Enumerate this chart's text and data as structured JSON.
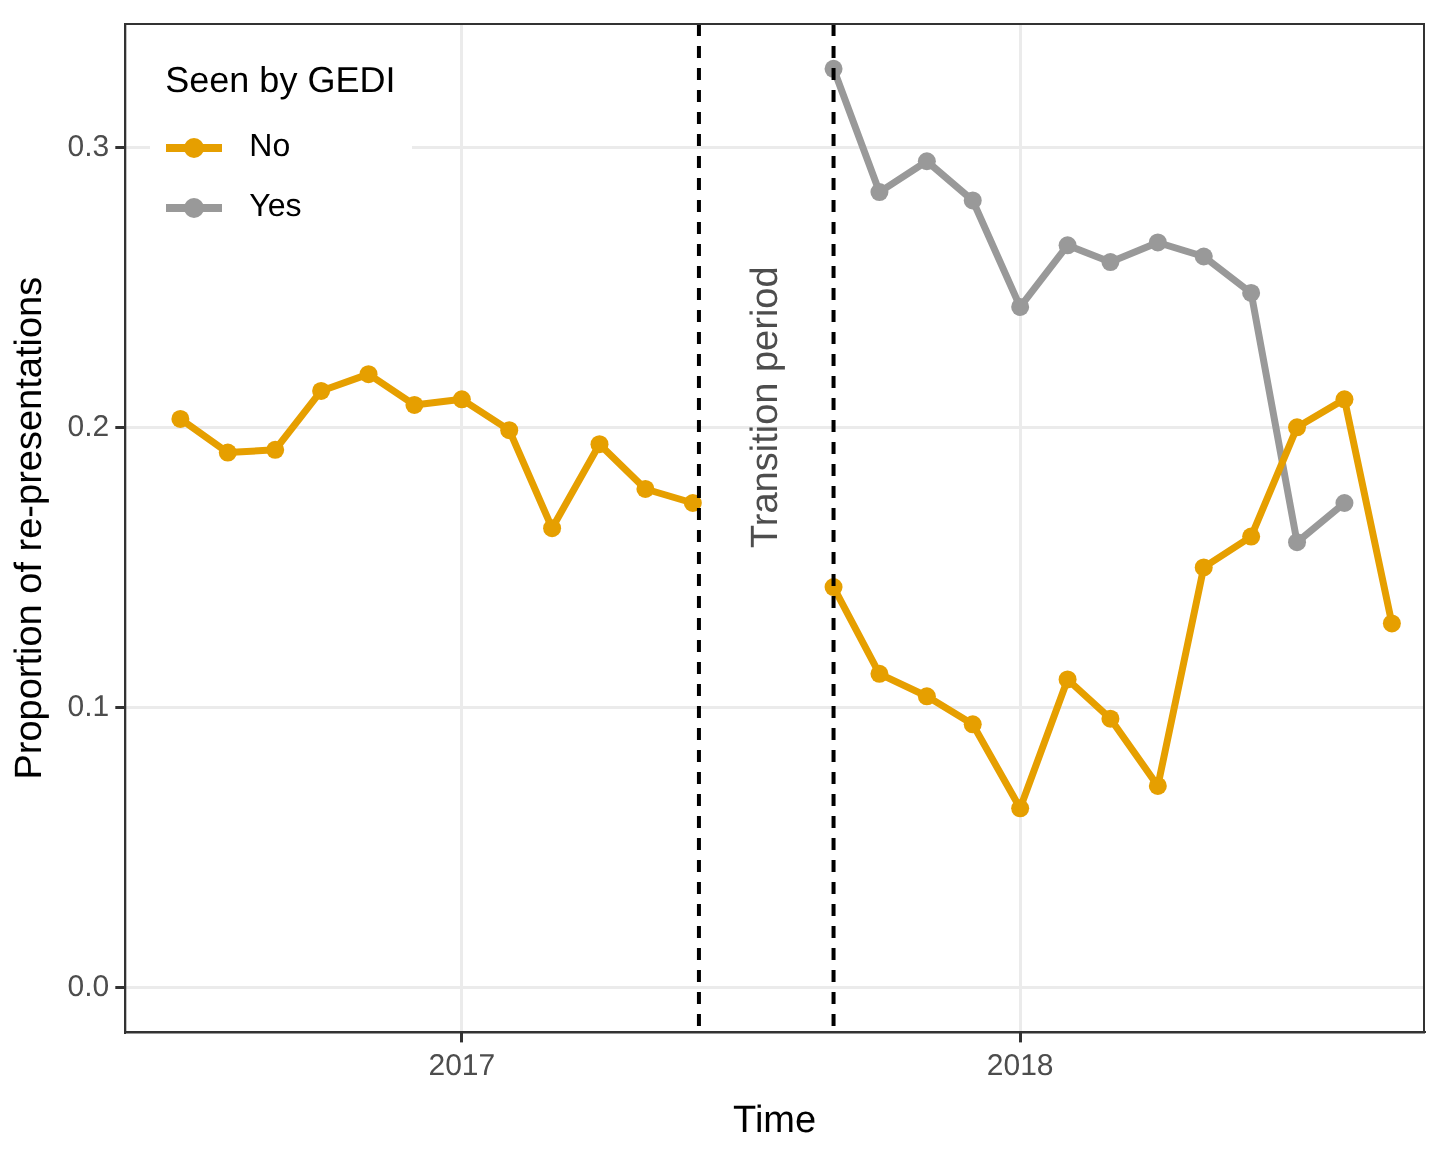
{
  "chart_data": {
    "type": "line",
    "xlabel": "Time",
    "ylabel": "Proportion of re-presentations",
    "legend_title": "Seen by GEDI",
    "legend": "top left",
    "grid": true,
    "marker": "circle",
    "line_style": "solid",
    "xlim": [
      "2016-05-26",
      "2018-09-22"
    ],
    "xticks": [
      {
        "value": "2017-01-01",
        "label": "2017"
      },
      {
        "value": "2018-01-01",
        "label": "2018"
      }
    ],
    "ylim": [
      -0.016,
      0.344
    ],
    "yticks": [
      {
        "value": 0,
        "label": "0.0"
      },
      {
        "value": 0.1,
        "label": "0.1"
      },
      {
        "value": 0.2,
        "label": "0.2"
      },
      {
        "value": 0.3,
        "label": "0.3"
      }
    ],
    "series": [
      {
        "name": "No",
        "color": "#e69f00",
        "x": [
          "2016-07",
          "2016-08",
          "2016-09",
          "2016-10",
          "2016-11",
          "2016-12",
          "2017-01",
          "2017-02",
          "2017-03",
          "2017-04",
          "2017-05",
          "2017-06",
          null,
          "2017-09",
          "2017-10",
          "2017-11",
          "2017-12",
          "2018-01",
          "2018-02",
          "2018-03",
          "2018-04",
          "2018-05",
          "2018-06",
          "2018-07",
          "2018-08",
          "2018-09"
        ],
        "values": [
          0.203,
          0.191,
          0.192,
          0.213,
          0.219,
          0.208,
          0.21,
          0.199,
          0.164,
          0.194,
          0.178,
          0.173,
          null,
          0.143,
          0.112,
          0.104,
          0.094,
          0.064,
          0.11,
          0.096,
          0.072,
          0.15,
          0.161,
          0.2,
          0.21,
          0.13
        ]
      },
      {
        "name": "Yes",
        "color": "#999999",
        "x": [
          "2017-09",
          "2017-10",
          "2017-11",
          "2017-12",
          "2018-01",
          "2018-02",
          "2018-03",
          "2018-04",
          "2018-05",
          "2018-06",
          "2018-07",
          "2018-08"
        ],
        "values": [
          0.328,
          0.284,
          0.295,
          0.281,
          0.243,
          0.265,
          0.259,
          0.266,
          0.261,
          0.248,
          0.159,
          0.173
        ]
      }
    ],
    "ref_lines": [
      {
        "axis": "x",
        "value": "2017-06-05",
        "color": "#000000",
        "line_style": "dashed"
      },
      {
        "axis": "x",
        "value": "2017-09-01",
        "color": "#000000",
        "line_style": "dashed"
      }
    ],
    "annotations": [
      "Transition period"
    ]
  }
}
